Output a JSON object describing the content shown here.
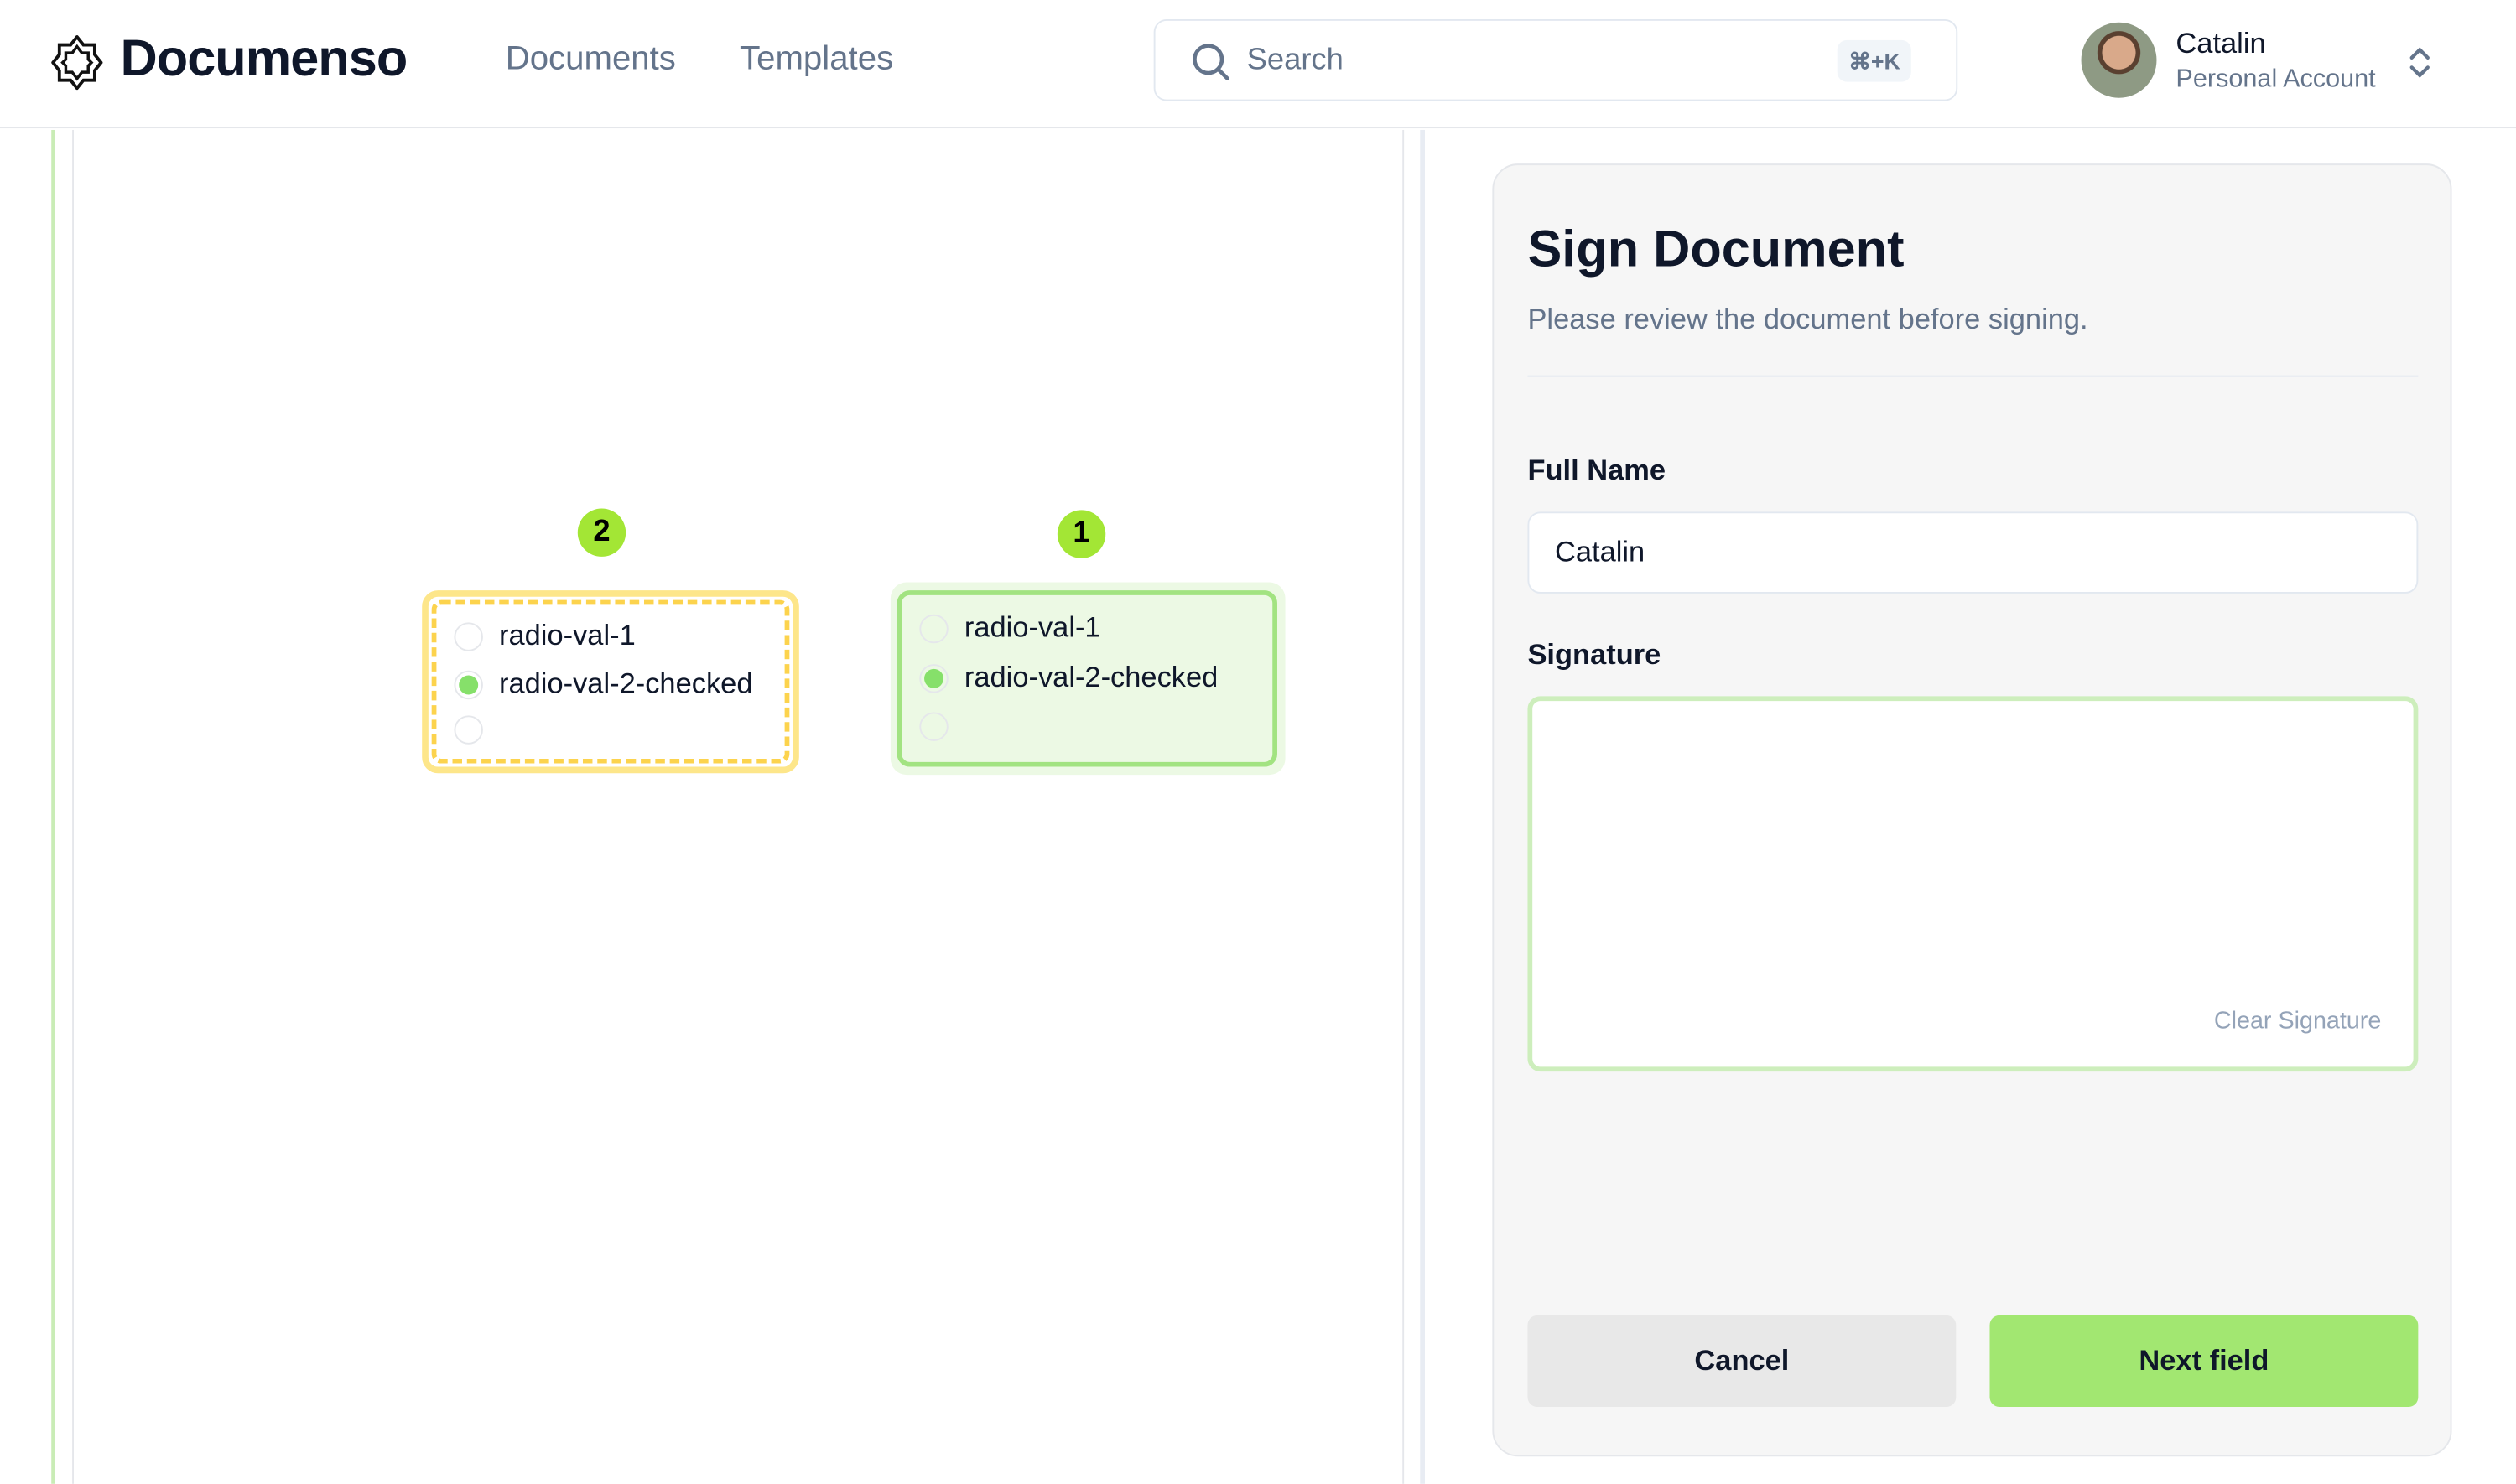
{
  "header": {
    "brand": "Documenso",
    "nav": [
      {
        "label": "Documents"
      },
      {
        "label": "Templates"
      }
    ],
    "search": {
      "placeholder": "Search",
      "shortcut": "⌘+K"
    },
    "user": {
      "name": "Catalin",
      "account": "Personal Account"
    }
  },
  "document": {
    "fields": [
      {
        "number": "2",
        "status": "pending",
        "options": [
          {
            "label": "radio-val-1",
            "checked": false
          },
          {
            "label": "radio-val-2-checked",
            "checked": true
          },
          {
            "label": "",
            "checked": false
          }
        ]
      },
      {
        "number": "1",
        "status": "completed",
        "options": [
          {
            "label": "radio-val-1",
            "checked": false
          },
          {
            "label": "radio-val-2-checked",
            "checked": true
          },
          {
            "label": "",
            "checked": false
          }
        ]
      }
    ]
  },
  "panel": {
    "title": "Sign Document",
    "subtitle": "Please review the document before signing.",
    "full_name_label": "Full Name",
    "full_name_value": "Catalin",
    "signature_label": "Signature",
    "clear_signature": "Clear Signature",
    "cancel": "Cancel",
    "next": "Next field"
  },
  "colors": {
    "accent": "#a2e771",
    "badge": "#a3e635",
    "pending_field": "#fde047"
  }
}
